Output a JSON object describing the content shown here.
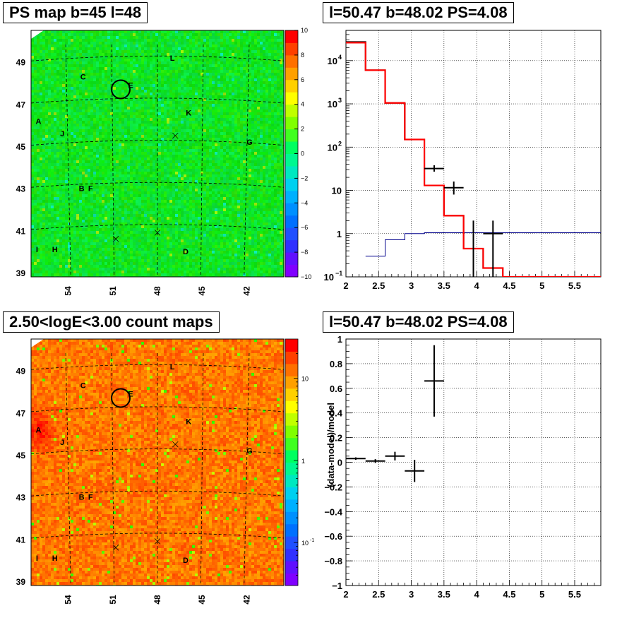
{
  "panels": {
    "ps_map": {
      "title": "PS map b=45 l=48",
      "x_ticks": [
        "54",
        "51",
        "48",
        "45",
        "42"
      ],
      "y_ticks": [
        "49",
        "47",
        "45",
        "43",
        "41",
        "39"
      ],
      "colorbar_ticks": [
        "10",
        "8",
        "6",
        "4",
        "2",
        "0",
        "−2",
        "−4",
        "−6",
        "−8",
        "−10"
      ],
      "source_labels": [
        {
          "text": "L"
        },
        {
          "text": "C"
        },
        {
          "text": "E"
        },
        {
          "text": "K"
        },
        {
          "text": "A"
        },
        {
          "text": "J"
        },
        {
          "text": "G"
        },
        {
          "text": "B"
        },
        {
          "text": "F"
        },
        {
          "text": "I"
        },
        {
          "text": "H"
        },
        {
          "text": "D"
        }
      ]
    },
    "count_map": {
      "title": "2.50<logE<3.00 count maps",
      "x_ticks": [
        "54",
        "51",
        "48",
        "45",
        "42"
      ],
      "y_ticks": [
        "49",
        "47",
        "45",
        "43",
        "41",
        "39"
      ],
      "colorbar_ticks": [
        "10",
        "1",
        "10"
      ],
      "colorbar_sup": "-1"
    },
    "spectrum": {
      "title": "l=50.47 b=48.02 PS=4.08"
    },
    "residual": {
      "title": "l=50.47 b=48.02 PS=4.08"
    }
  },
  "chart_data": [
    {
      "type": "heatmap",
      "title": "PS map b=45 l=48",
      "x_axis": "longitude (decreasing)",
      "xlim": [
        56.5,
        39.5
      ],
      "ylim": [
        38.8,
        50.5
      ],
      "z_range": [
        -10,
        10
      ],
      "colorscale": "rainbow",
      "typical_value": 0,
      "sources": [
        {
          "name": "L",
          "x": 47.0,
          "y": 49.2
        },
        {
          "name": "C",
          "x": 53.0,
          "y": 48.3
        },
        {
          "name": "E",
          "x": 49.8,
          "y": 47.9
        },
        {
          "name": "K",
          "x": 45.9,
          "y": 46.6
        },
        {
          "name": "A",
          "x": 56.0,
          "y": 46.2
        },
        {
          "name": "J",
          "x": 54.4,
          "y": 45.6
        },
        {
          "name": "G",
          "x": 41.8,
          "y": 45.2
        },
        {
          "name": "B",
          "x": 53.1,
          "y": 43.0
        },
        {
          "name": "F",
          "x": 52.5,
          "y": 43.0
        },
        {
          "name": "I",
          "x": 56.1,
          "y": 40.1
        },
        {
          "name": "H",
          "x": 54.9,
          "y": 40.1
        },
        {
          "name": "D",
          "x": 46.1,
          "y": 40.0
        }
      ],
      "marker_circle": {
        "x": 50.47,
        "y": 47.7
      }
    },
    {
      "type": "heatmap",
      "title": "2.50<logE<3.00 count maps",
      "xlim": [
        56.5,
        39.5
      ],
      "ylim": [
        38.8,
        50.5
      ],
      "z_scale": "log",
      "z_range": [
        0.03,
        30
      ],
      "typical_value": 12,
      "hot_spot": {
        "name": "A",
        "x": 56.0,
        "y": 46.2
      }
    },
    {
      "type": "line",
      "title": "l=50.47 b=48.02 PS=4.08",
      "y_scale": "log",
      "xlim": [
        2,
        5.9
      ],
      "ylim": [
        0.1,
        50000
      ],
      "x_ticks": [
        2,
        2.5,
        3,
        3.5,
        4,
        4.5,
        5,
        5.5
      ],
      "y_ticks": [
        0.1,
        1,
        10,
        100,
        1000,
        10000
      ],
      "grid": true,
      "series": [
        {
          "style": "step",
          "color": "#ff0000",
          "edges": [
            2.0,
            2.3,
            2.6,
            2.9,
            3.2,
            3.5,
            3.8,
            4.1,
            4.4,
            5.9
          ],
          "values": [
            26000,
            6000,
            1050,
            150,
            13,
            2.6,
            0.45,
            0.16,
            0.1
          ]
        },
        {
          "style": "step",
          "color": "#000000",
          "edges": [
            2.0,
            2.3,
            2.6,
            2.9,
            3.2,
            3.5,
            3.8,
            4.1,
            4.4,
            5.9
          ],
          "values": [
            27000,
            6000,
            1050,
            150,
            13,
            2.6,
            0.45,
            0.16,
            0.1
          ]
        },
        {
          "style": "step",
          "color": "#00008b",
          "edges": [
            2.3,
            2.6,
            2.9,
            3.2,
            5.9
          ],
          "values": [
            0.3,
            0.72,
            1.0,
            1.05
          ]
        },
        {
          "style": "errorbar",
          "color": "#000000",
          "points": [
            {
              "x": 3.35,
              "y": 32,
              "xerr": 0.15,
              "ylo": 27,
              "yhi": 38
            },
            {
              "x": 3.65,
              "y": 11.5,
              "xerr": 0.15,
              "ylo": 8,
              "yhi": 16
            },
            {
              "x": 3.95,
              "y": 1.0,
              "xerr": 0.0,
              "ylo": 0.1,
              "yhi": 2.0
            },
            {
              "x": 4.25,
              "y": 1.0,
              "xerr": 0.15,
              "ylo": 0.1,
              "yhi": 2.0
            }
          ]
        }
      ]
    },
    {
      "type": "scatter",
      "title": "l=50.47 b=48.02 PS=4.08",
      "ylabel": "(data-model)/model",
      "xlim": [
        2,
        5.9
      ],
      "ylim": [
        -1,
        1
      ],
      "x_ticks": [
        2,
        2.5,
        3,
        3.5,
        4,
        4.5,
        5,
        5.5
      ],
      "y_ticks": [
        -1,
        -0.8,
        -0.6,
        -0.4,
        -0.2,
        0,
        0.2,
        0.4,
        0.6,
        0.8,
        1
      ],
      "grid": true,
      "points": [
        {
          "x": 2.15,
          "y": 0.03,
          "xerr": 0.15,
          "yerr": 0.01
        },
        {
          "x": 2.45,
          "y": 0.01,
          "xerr": 0.15,
          "yerr": 0.015
        },
        {
          "x": 2.75,
          "y": 0.05,
          "xerr": 0.15,
          "yerr": 0.035
        },
        {
          "x": 3.05,
          "y": -0.07,
          "xerr": 0.15,
          "yerr": 0.09
        },
        {
          "x": 3.35,
          "y": 0.66,
          "xerr": 0.15,
          "yerr": 0.29
        }
      ]
    }
  ]
}
